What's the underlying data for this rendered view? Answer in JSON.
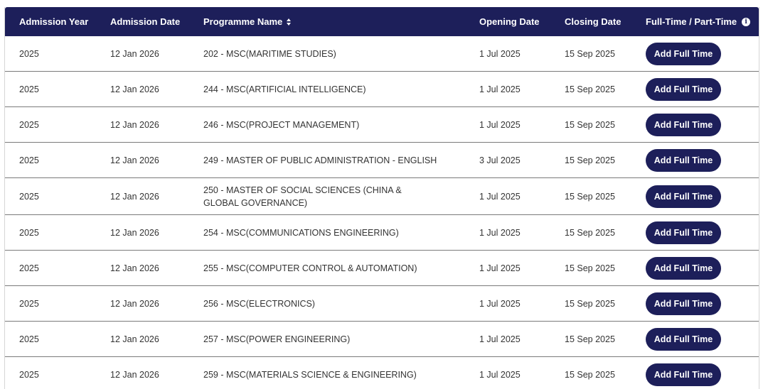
{
  "header": {
    "admission_year": "Admission Year",
    "admission_date": "Admission Date",
    "programme_name": "Programme Name",
    "opening_date": "Opening Date",
    "closing_date": "Closing Date",
    "mode": "Full-Time / Part-Time"
  },
  "rows": [
    {
      "year": "2025",
      "admission_date": "12 Jan 2026",
      "programme": "202 - MSC(MARITIME STUDIES)",
      "opening": "1 Jul 2025",
      "closing": "15 Sep 2025",
      "action": "Add Full Time"
    },
    {
      "year": "2025",
      "admission_date": "12 Jan 2026",
      "programme": "244 - MSC(ARTIFICIAL INTELLIGENCE)",
      "opening": "1 Jul 2025",
      "closing": "15 Sep 2025",
      "action": "Add Full Time"
    },
    {
      "year": "2025",
      "admission_date": "12 Jan 2026",
      "programme": "246 - MSC(PROJECT MANAGEMENT)",
      "opening": "1 Jul 2025",
      "closing": "15 Sep 2025",
      "action": "Add Full Time"
    },
    {
      "year": "2025",
      "admission_date": "12 Jan 2026",
      "programme": "249 - MASTER OF PUBLIC ADMINISTRATION - ENGLISH",
      "opening": "3 Jul 2025",
      "closing": "15 Sep 2025",
      "action": "Add Full Time"
    },
    {
      "year": "2025",
      "admission_date": "12 Jan 2026",
      "programme": "250 - MASTER OF SOCIAL SCIENCES (CHINA & GLOBAL GOVERNANCE)",
      "opening": "1 Jul 2025",
      "closing": "15 Sep 2025",
      "action": "Add Full Time"
    },
    {
      "year": "2025",
      "admission_date": "12 Jan 2026",
      "programme": "254 - MSC(COMMUNICATIONS ENGINEERING)",
      "opening": "1 Jul 2025",
      "closing": "15 Sep 2025",
      "action": "Add Full Time"
    },
    {
      "year": "2025",
      "admission_date": "12 Jan 2026",
      "programme": "255 - MSC(COMPUTER CONTROL & AUTOMATION)",
      "opening": "1 Jul 2025",
      "closing": "15 Sep 2025",
      "action": "Add Full Time"
    },
    {
      "year": "2025",
      "admission_date": "12 Jan 2026",
      "programme": "256 - MSC(ELECTRONICS)",
      "opening": "1 Jul 2025",
      "closing": "15 Sep 2025",
      "action": "Add Full Time"
    },
    {
      "year": "2025",
      "admission_date": "12 Jan 2026",
      "programme": "257 - MSC(POWER ENGINEERING)",
      "opening": "1 Jul 2025",
      "closing": "15 Sep 2025",
      "action": "Add Full Time"
    },
    {
      "year": "2025",
      "admission_date": "12 Jan 2026",
      "programme": "259 - MSC(MATERIALS SCIENCE & ENGINEERING)",
      "opening": "1 Jul 2025",
      "closing": "15 Sep 2025",
      "action": "Add Full Time"
    }
  ],
  "icons": {
    "sort": "sort-icon",
    "info": "info-icon"
  },
  "colors": {
    "header_bg": "#1d1f5a",
    "button_bg": "#1d1f5a"
  }
}
